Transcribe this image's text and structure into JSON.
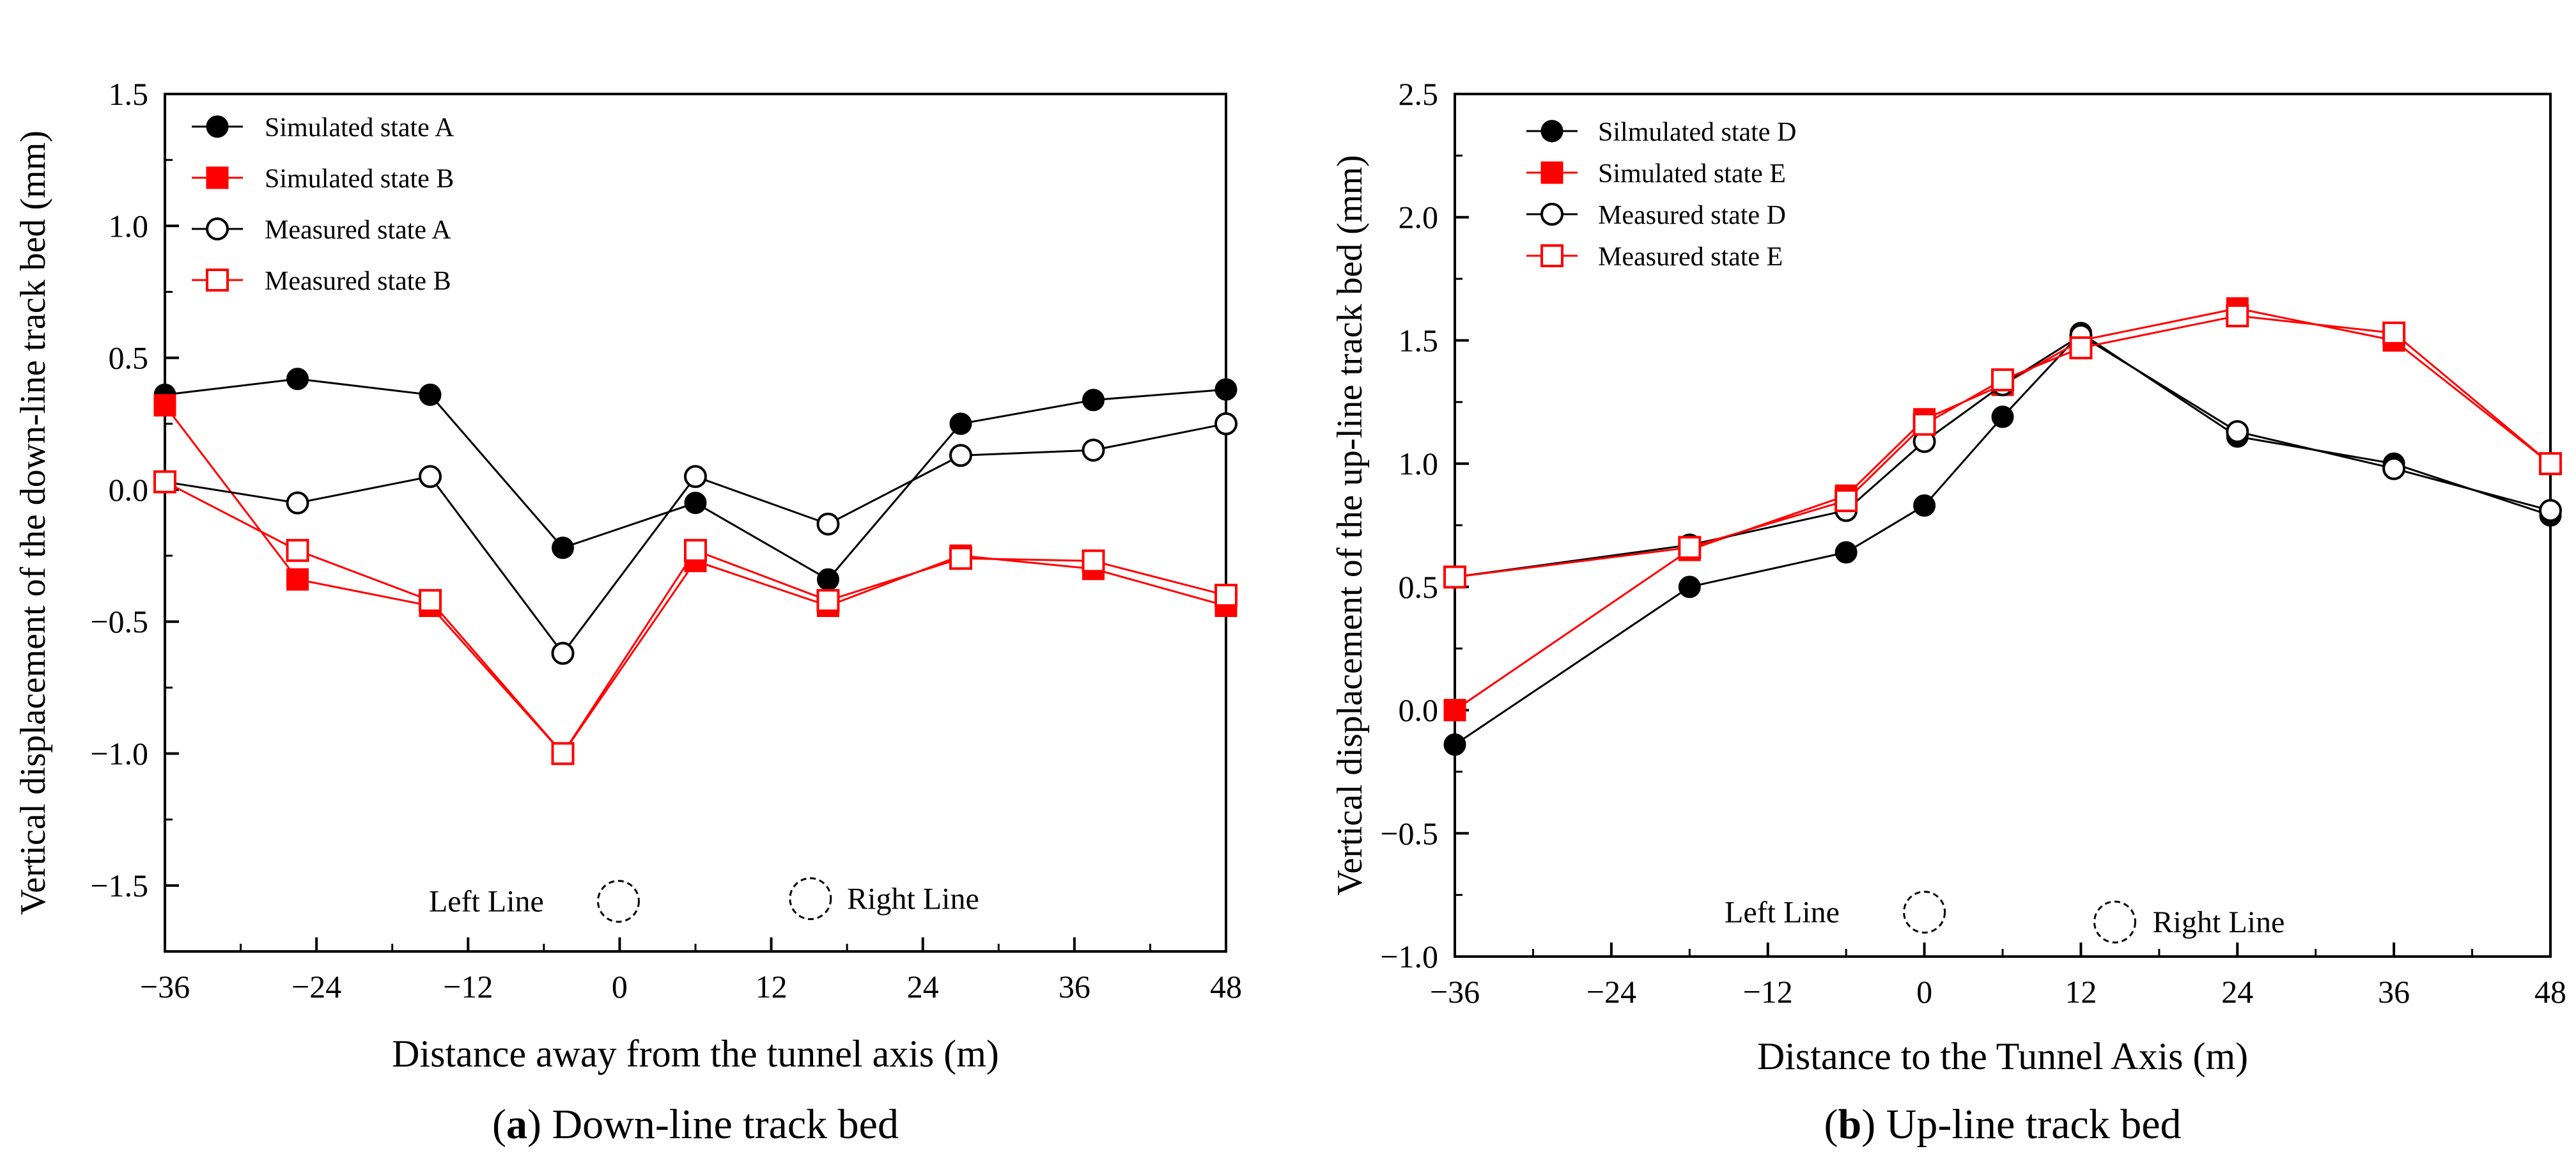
{
  "colors": {
    "black_series": "#000000",
    "red_series": "#ff0000"
  },
  "chart_data": [
    {
      "type": "line",
      "caption_letter": "a",
      "caption_text": "Down-line track bed",
      "xlabel": "Distance away from the tunnel axis (m)",
      "ylabel": "Vertical displacement of the down-line track bed (mm)",
      "xlim": [
        -36,
        48
      ],
      "ylim": [
        -1.75,
        1.5
      ],
      "x_ticks": [
        -36,
        -24,
        -12,
        0,
        12,
        24,
        36,
        48
      ],
      "x_tick_labels": [
        "−36",
        "−24",
        "−12",
        "0",
        "12",
        "24",
        "36",
        "48"
      ],
      "y_ticks": [
        -1.5,
        -1.0,
        -0.5,
        0.0,
        0.5,
        1.0,
        1.5
      ],
      "y_tick_labels": [
        "−1.5",
        "−1.0",
        "−0.5",
        "0.0",
        "0.5",
        "1.0",
        "1.5"
      ],
      "grid": false,
      "legend_position": "top-left",
      "series": [
        {
          "name": "Simulated state A",
          "color": "#000000",
          "marker": "filled-circle",
          "x": [
            -36,
            -25.5,
            -15,
            -4.5,
            6,
            16.5,
            27,
            37.5,
            48
          ],
          "y": [
            0.36,
            0.42,
            0.36,
            -0.22,
            -0.05,
            -0.34,
            0.25,
            0.34,
            0.38
          ]
        },
        {
          "name": "Simulated state B",
          "color": "#ff0000",
          "marker": "filled-square",
          "x": [
            -36,
            -25.5,
            -15,
            -4.5,
            6,
            16.5,
            27,
            37.5,
            48
          ],
          "y": [
            0.32,
            -0.34,
            -0.44,
            -1.0,
            -0.27,
            -0.44,
            -0.25,
            -0.3,
            -0.44
          ]
        },
        {
          "name": "Measured state A",
          "color": "#000000",
          "marker": "open-circle",
          "x": [
            -36,
            -25.5,
            -15,
            -4.5,
            6,
            16.5,
            27,
            37.5,
            48
          ],
          "y": [
            0.03,
            -0.05,
            0.05,
            -0.62,
            0.05,
            -0.13,
            0.13,
            0.15,
            0.25
          ]
        },
        {
          "name": "Measured state B",
          "color": "#ff0000",
          "marker": "open-square",
          "x": [
            -36,
            -25.5,
            -15,
            -4.5,
            6,
            16.5,
            27,
            37.5,
            48
          ],
          "y": [
            0.03,
            -0.23,
            -0.42,
            -1.0,
            -0.23,
            -0.42,
            -0.26,
            -0.27,
            -0.4
          ]
        }
      ],
      "annotations": [
        {
          "text": "Left Line",
          "x": -6,
          "y": -1.56,
          "anchor": "end"
        },
        {
          "text": "Right Line",
          "x": 18,
          "y": -1.55,
          "anchor": "start"
        }
      ],
      "tunnel_markers": [
        {
          "x": -0.1,
          "y": -1.56
        },
        {
          "x": 15.1,
          "y": -1.55
        }
      ]
    },
    {
      "type": "line",
      "caption_letter": "b",
      "caption_text": "Up-line track bed",
      "xlabel": "Distance to the Tunnel Axis (m)",
      "ylabel": "Vertical displacement  of the up-line track bed (mm)",
      "xlim": [
        -36,
        48
      ],
      "ylim": [
        -1.0,
        2.5
      ],
      "x_ticks": [
        -36,
        -24,
        -12,
        0,
        12,
        24,
        36,
        48
      ],
      "x_tick_labels": [
        "−36",
        "−24",
        "−12",
        "0",
        "12",
        "24",
        "36",
        "48"
      ],
      "y_ticks": [
        -1.0,
        -0.5,
        0.0,
        0.5,
        1.0,
        1.5,
        2.0,
        2.5
      ],
      "y_tick_labels": [
        "−1.0",
        "−0.5",
        "0.0",
        "0.5",
        "1.0",
        "1.5",
        "2.0",
        "2.5"
      ],
      "grid": false,
      "legend_position": "top-left",
      "series": [
        {
          "name": "Silmulated state D",
          "color": "#000000",
          "marker": "filled-circle",
          "x": [
            -36,
            -18,
            -6,
            0,
            6,
            12,
            24,
            36,
            48
          ],
          "y": [
            -0.14,
            0.5,
            0.64,
            0.83,
            1.19,
            1.53,
            1.11,
            1.0,
            0.79
          ]
        },
        {
          "name": "Simulated state E",
          "color": "#ff0000",
          "marker": "filled-square",
          "x": [
            -36,
            -18,
            -6,
            0,
            6,
            12,
            24,
            36,
            48
          ],
          "y": [
            0.0,
            0.65,
            0.87,
            1.18,
            1.32,
            1.5,
            1.63,
            1.5,
            1.0
          ]
        },
        {
          "name": "Measured state D",
          "color": "#000000",
          "marker": "open-circle",
          "x": [
            -36,
            -18,
            -6,
            0,
            6,
            12,
            24,
            36,
            48
          ],
          "y": [
            0.54,
            0.67,
            0.81,
            1.09,
            1.32,
            1.52,
            1.13,
            0.98,
            0.81
          ]
        },
        {
          "name": "Measured state E",
          "color": "#ff0000",
          "marker": "open-square",
          "x": [
            -36,
            -18,
            -6,
            0,
            6,
            12,
            24,
            36,
            48
          ],
          "y": [
            0.54,
            0.66,
            0.85,
            1.16,
            1.34,
            1.47,
            1.6,
            1.53,
            1.0
          ]
        }
      ],
      "annotations": [
        {
          "text": "Left Line",
          "x": -6.5,
          "y": -0.82,
          "anchor": "end"
        },
        {
          "text": "Right Line",
          "x": 17.5,
          "y": -0.86,
          "anchor": "start"
        }
      ],
      "tunnel_markers": [
        {
          "x": 0,
          "y": -0.82
        },
        {
          "x": 14.6,
          "y": -0.86
        }
      ]
    }
  ]
}
